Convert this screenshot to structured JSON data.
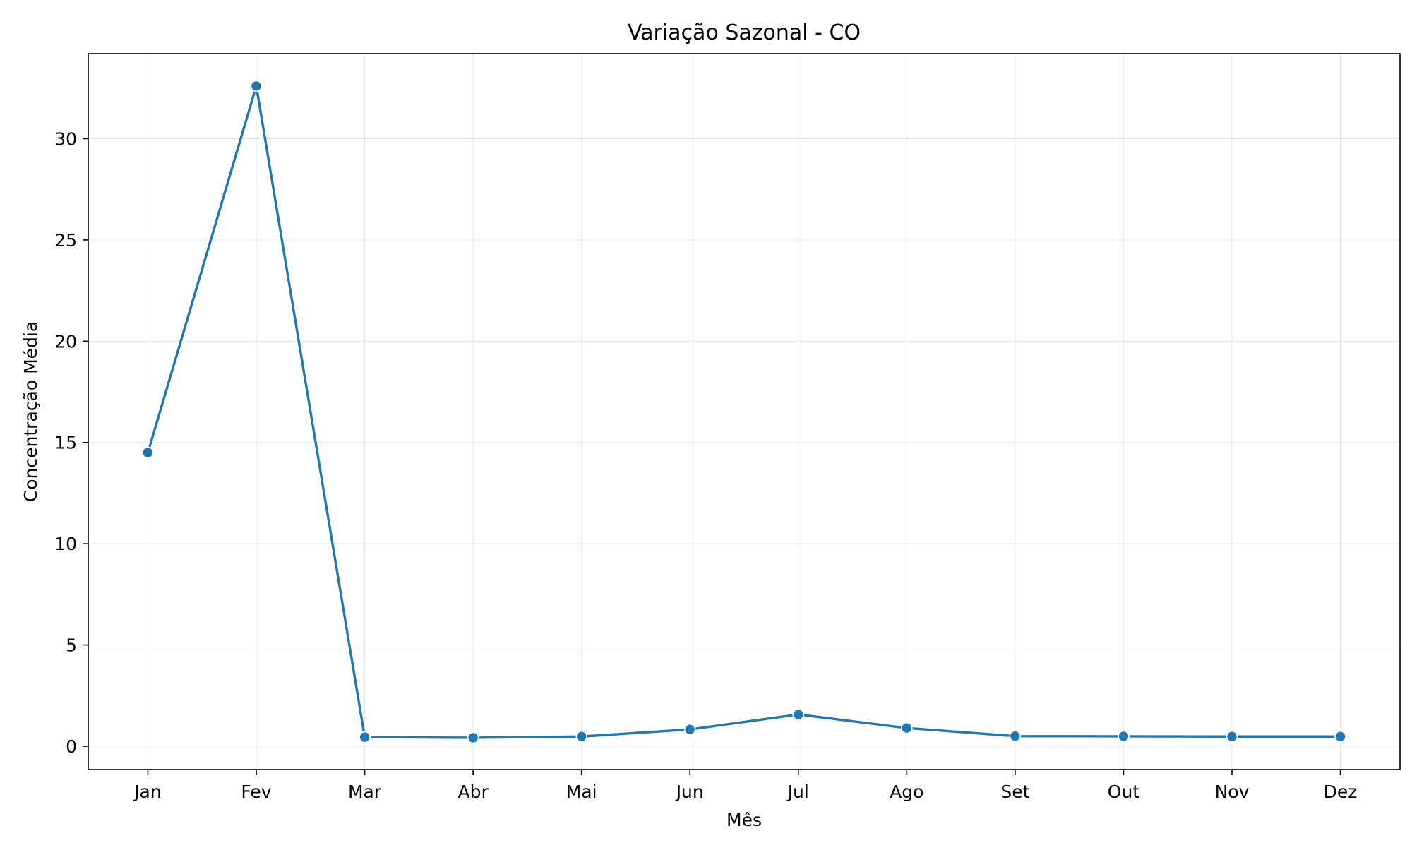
{
  "chart_data": {
    "type": "line",
    "title": "Variação Sazonal - CO",
    "xlabel": "Mês",
    "ylabel": "Concentração Média",
    "categories": [
      "Jan",
      "Fev",
      "Mar",
      "Abr",
      "Mai",
      "Jun",
      "Jul",
      "Ago",
      "Set",
      "Out",
      "Nov",
      "Dez"
    ],
    "series": [
      {
        "values": [
          14.5,
          32.6,
          0.45,
          0.42,
          0.48,
          0.83,
          1.57,
          0.9,
          0.5,
          0.49,
          0.48,
          0.48
        ],
        "color": "#1f77b4"
      }
    ],
    "ylim": [
      -1.15,
      34.2
    ],
    "yticks": [
      0,
      5,
      10,
      15,
      20,
      25,
      30
    ],
    "grid": true,
    "legend": false
  }
}
